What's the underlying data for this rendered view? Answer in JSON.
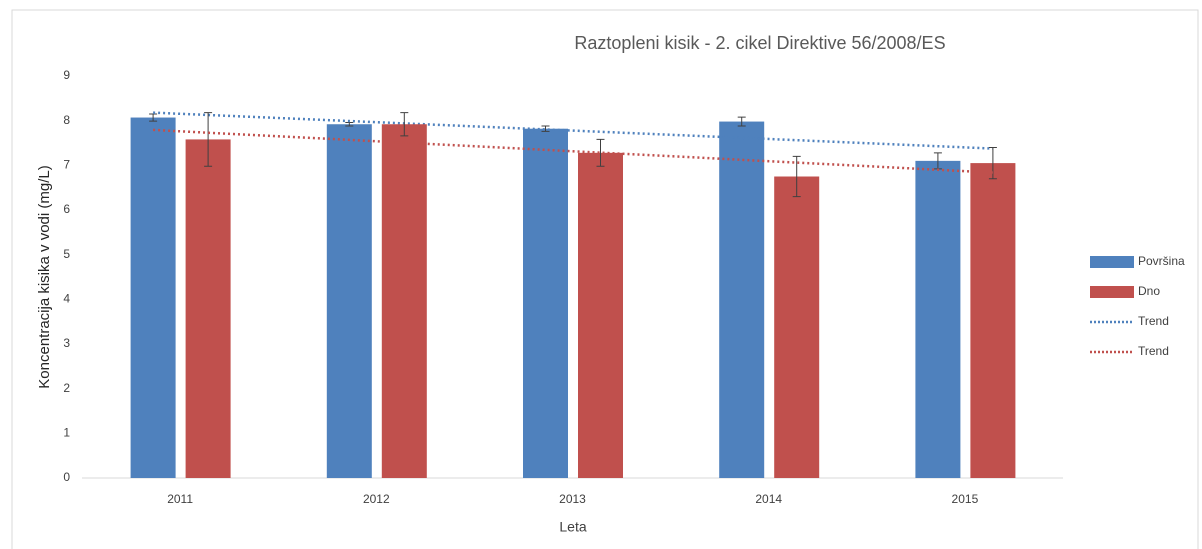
{
  "chart_data": {
    "type": "bar",
    "title": "Raztopleni kisik - 2. cikel Direktive 56/2008/ES",
    "x_label": "Leta",
    "y_label": "Koncentracija kisika v vodi (mg/L)",
    "categories": [
      "2011",
      "2012",
      "2013",
      "2014",
      "2015"
    ],
    "series": [
      {
        "name": "Površina",
        "color": "#4f81bd",
        "values": [
          8.07,
          7.92,
          7.82,
          7.98,
          7.1
        ],
        "errors": [
          0.08,
          0.04,
          0.06,
          0.1,
          0.18
        ],
        "trend": {
          "name": "Trend",
          "color": "#4f81bd"
        }
      },
      {
        "name": "Dno",
        "color": "#c0504d",
        "values": [
          7.58,
          7.92,
          7.28,
          6.75,
          7.05
        ],
        "errors": [
          0.6,
          0.26,
          0.3,
          0.45,
          0.35
        ],
        "trend": {
          "name": "Trend",
          "color": "#c0504d"
        }
      }
    ],
    "ylim": [
      0,
      9
    ],
    "yticks": [
      0,
      1,
      2,
      3,
      4,
      5,
      6,
      7,
      8,
      9
    ],
    "grid": false,
    "legend": "right"
  }
}
